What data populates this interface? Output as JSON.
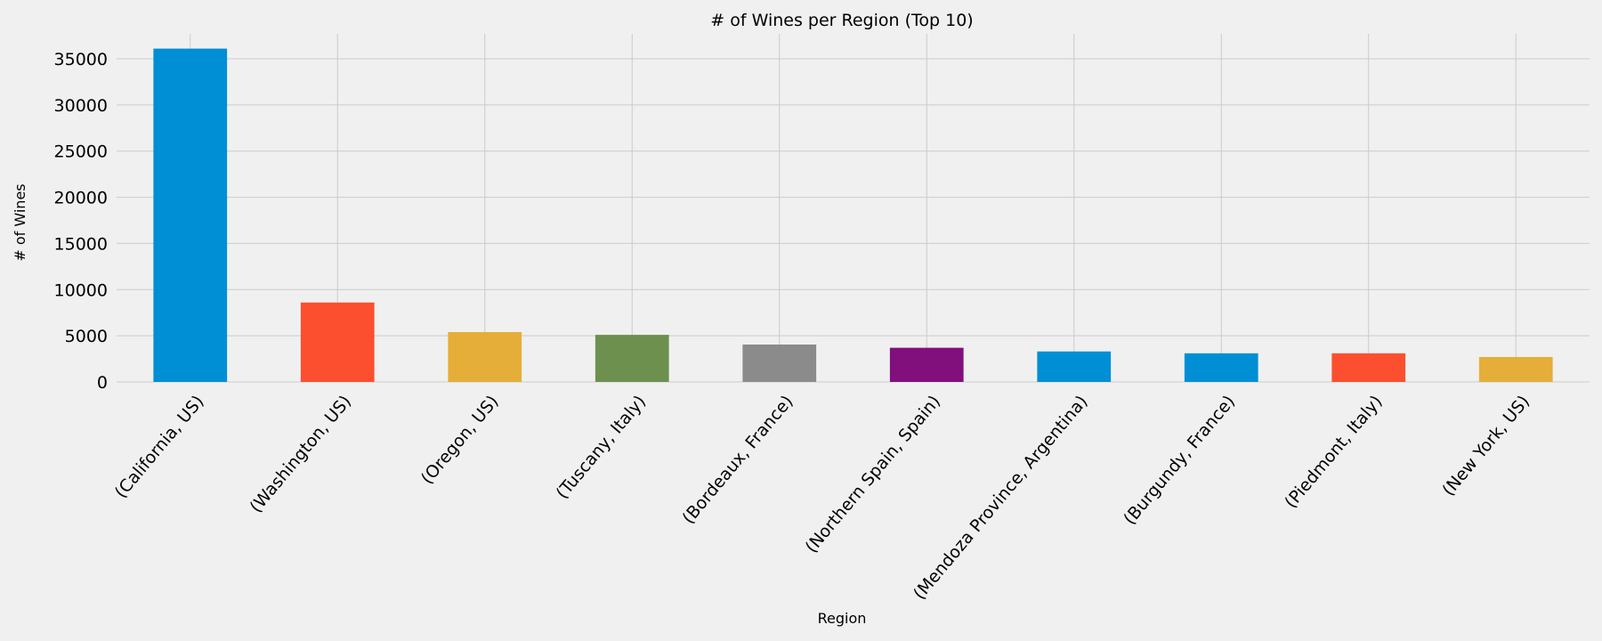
{
  "chart_data": {
    "type": "bar",
    "title": "# of Wines per Region (Top 10)",
    "xlabel": "Region",
    "ylabel": "# of Wines",
    "categories": [
      "(California, US)",
      "(Washington, US)",
      "(Oregon, US)",
      "(Tuscany, Italy)",
      "(Bordeaux, France)",
      "(Northern Spain, Spain)",
      "(Mendoza Province, Argentina)",
      "(Burgundy, France)",
      "(Piedmont, Italy)",
      "(New York, US)"
    ],
    "values": [
      36100,
      8600,
      5400,
      5100,
      4050,
      3700,
      3300,
      3100,
      3100,
      2700
    ],
    "colors": [
      "#008fd5",
      "#fc4f30",
      "#e5ae38",
      "#6d904f",
      "#8b8b8b",
      "#810f7c",
      "#008fd5",
      "#008fd5",
      "#fc4f30",
      "#e5ae38"
    ],
    "yticks": [
      0,
      5000,
      10000,
      15000,
      20000,
      25000,
      30000,
      35000
    ],
    "ylim": [
      0,
      37700
    ],
    "grid": true,
    "legend": "none"
  }
}
